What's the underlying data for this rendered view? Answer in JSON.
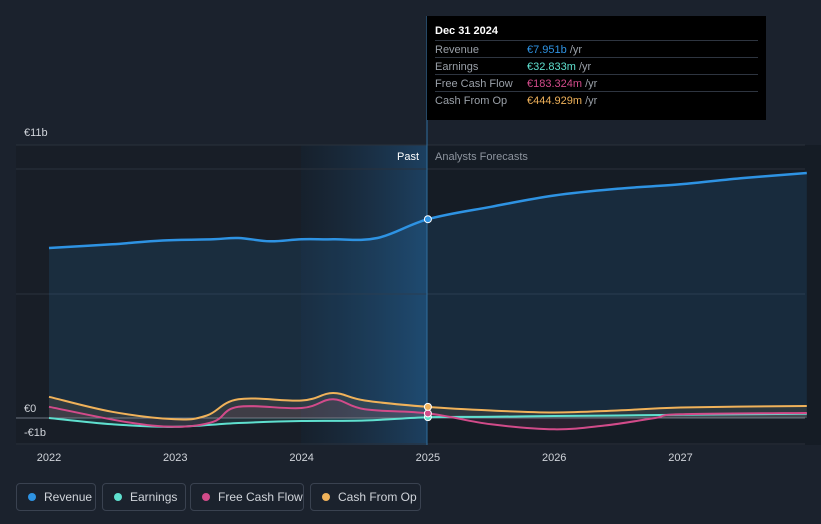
{
  "chart_data": {
    "type": "line",
    "y_max_label": "€11b",
    "y_zero_label": "€0",
    "y_min_label": "-€1b",
    "ylim": [
      -1,
      11
    ],
    "x_ticks": [
      "2022",
      "2023",
      "2024",
      "2025",
      "2026",
      "2027"
    ],
    "past_label": "Past",
    "forecast_label": "Analysts Forecasts",
    "highlight_date": 2025.0,
    "series": [
      {
        "name": "Revenue",
        "color": "#2e93e3",
        "x": [
          2022.0,
          2022.5,
          2022.9,
          2023.3,
          2023.5,
          2023.75,
          2024.0,
          2024.25,
          2024.6,
          2025.0,
          2025.5,
          2026.0,
          2026.5,
          2027.0,
          2027.5,
          2028.0
        ],
        "values": [
          6.8,
          6.95,
          7.1,
          7.15,
          7.2,
          7.07,
          7.15,
          7.15,
          7.2,
          7.951,
          8.45,
          8.9,
          9.17,
          9.35,
          9.6,
          9.8
        ]
      },
      {
        "name": "Earnings",
        "color": "#5fe0cf",
        "x": [
          2022.0,
          2022.5,
          2023.0,
          2023.5,
          2024.0,
          2024.5,
          2025.0,
          2025.5,
          2026.0,
          2026.5,
          2027.0,
          2027.5,
          2028.0
        ],
        "values": [
          0.0,
          -0.25,
          -0.35,
          -0.2,
          -0.12,
          -0.1,
          0.033,
          0.05,
          0.08,
          0.1,
          0.13,
          0.15,
          0.17
        ]
      },
      {
        "name": "Free Cash Flow",
        "color": "#d24b8a",
        "x": [
          2022.0,
          2022.6,
          2023.0,
          2023.3,
          2023.5,
          2024.0,
          2024.25,
          2024.5,
          2025.0,
          2025.5,
          2026.0,
          2026.4,
          2026.8,
          2027.0,
          2028.0
        ],
        "values": [
          0.45,
          -0.15,
          -0.35,
          -0.15,
          0.45,
          0.4,
          0.75,
          0.35,
          0.183,
          -0.25,
          -0.45,
          -0.3,
          0.0,
          0.15,
          0.2
        ]
      },
      {
        "name": "Cash From Op",
        "color": "#f0b25a",
        "x": [
          2022.0,
          2022.5,
          2023.0,
          2023.25,
          2023.5,
          2024.0,
          2024.25,
          2024.5,
          2025.0,
          2025.5,
          2026.0,
          2026.5,
          2027.0,
          2028.0
        ],
        "values": [
          0.85,
          0.25,
          -0.05,
          0.1,
          0.75,
          0.7,
          1.0,
          0.7,
          0.445,
          0.3,
          0.22,
          0.3,
          0.42,
          0.48
        ]
      }
    ]
  },
  "tooltip": {
    "date": "Dec 31 2024",
    "rows": [
      {
        "label": "Revenue",
        "value": "€7.951b",
        "unit": " /yr",
        "color": "#2e93e3"
      },
      {
        "label": "Earnings",
        "value": "€32.833m",
        "unit": " /yr",
        "color": "#5fe0cf"
      },
      {
        "label": "Free Cash Flow",
        "value": "€183.324m",
        "unit": " /yr",
        "color": "#d24b8a"
      },
      {
        "label": "Cash From Op",
        "value": "€444.929m",
        "unit": " /yr",
        "color": "#f0b25a"
      }
    ]
  },
  "legend": [
    {
      "label": "Revenue",
      "color": "#2e93e3"
    },
    {
      "label": "Earnings",
      "color": "#5fe0cf"
    },
    {
      "label": "Free Cash Flow",
      "color": "#d24b8a"
    },
    {
      "label": "Cash From Op",
      "color": "#f0b25a"
    }
  ]
}
